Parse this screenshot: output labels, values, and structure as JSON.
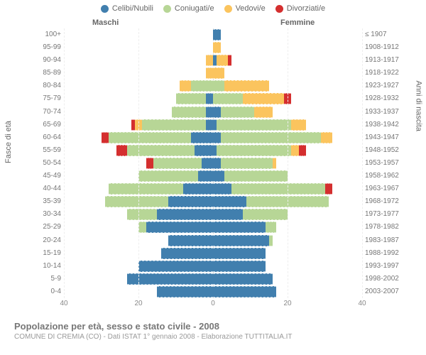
{
  "legend": [
    {
      "label": "Celibi/Nubili",
      "color": "#417fae"
    },
    {
      "label": "Coniugati/e",
      "color": "#b7d696"
    },
    {
      "label": "Vedovi/e",
      "color": "#fbc45e"
    },
    {
      "label": "Divorziati/e",
      "color": "#d42f2f"
    }
  ],
  "gender": {
    "male": "Maschi",
    "female": "Femmine"
  },
  "axis": {
    "left_title": "Fasce di età",
    "right_title": "Anni di nascita",
    "xmax": 40,
    "xticks": [
      40,
      20,
      0,
      20,
      40
    ]
  },
  "footer": {
    "title": "Popolazione per età, sesso e stato civile - 2008",
    "sub": "COMUNE DI CREMIA (CO) - Dati ISTAT 1° gennaio 2008 - Elaborazione TUTTITALIA.IT"
  },
  "rows": [
    {
      "age": "100+",
      "year": "≤ 1907",
      "m": [
        0,
        0,
        0,
        0
      ],
      "f": [
        2,
        0,
        0,
        0
      ]
    },
    {
      "age": "95-99",
      "year": "1908-1912",
      "m": [
        0,
        0,
        0,
        0
      ],
      "f": [
        0,
        0,
        2,
        0
      ]
    },
    {
      "age": "90-94",
      "year": "1913-1917",
      "m": [
        0,
        0,
        2,
        0
      ],
      "f": [
        1,
        0,
        3,
        1
      ]
    },
    {
      "age": "85-89",
      "year": "1918-1922",
      "m": [
        0,
        0,
        2,
        0
      ],
      "f": [
        0,
        0,
        3,
        0
      ]
    },
    {
      "age": "80-84",
      "year": "1923-1927",
      "m": [
        0,
        6,
        3,
        0
      ],
      "f": [
        0,
        3,
        12,
        0
      ]
    },
    {
      "age": "75-79",
      "year": "1928-1932",
      "m": [
        2,
        8,
        0,
        0
      ],
      "f": [
        0,
        8,
        11,
        2
      ]
    },
    {
      "age": "70-74",
      "year": "1933-1937",
      "m": [
        2,
        9,
        0,
        0
      ],
      "f": [
        2,
        9,
        5,
        0
      ]
    },
    {
      "age": "65-69",
      "year": "1938-1942",
      "m": [
        2,
        17,
        2,
        1
      ],
      "f": [
        1,
        20,
        4,
        0
      ]
    },
    {
      "age": "60-64",
      "year": "1943-1947",
      "m": [
        6,
        22,
        0,
        2
      ],
      "f": [
        2,
        27,
        3,
        0
      ]
    },
    {
      "age": "55-59",
      "year": "1948-1952",
      "m": [
        5,
        18,
        0,
        3
      ],
      "f": [
        1,
        20,
        2,
        2
      ]
    },
    {
      "age": "50-54",
      "year": "1953-1957",
      "m": [
        3,
        13,
        0,
        2
      ],
      "f": [
        2,
        14,
        1,
        0
      ]
    },
    {
      "age": "45-49",
      "year": "1958-1962",
      "m": [
        4,
        16,
        0,
        0
      ],
      "f": [
        3,
        17,
        0,
        0
      ]
    },
    {
      "age": "40-44",
      "year": "1963-1967",
      "m": [
        8,
        20,
        0,
        0
      ],
      "f": [
        5,
        25,
        0,
        2
      ]
    },
    {
      "age": "35-39",
      "year": "1968-1972",
      "m": [
        12,
        17,
        0,
        0
      ],
      "f": [
        9,
        22,
        0,
        0
      ]
    },
    {
      "age": "30-34",
      "year": "1973-1977",
      "m": [
        15,
        8,
        0,
        0
      ],
      "f": [
        8,
        12,
        0,
        0
      ]
    },
    {
      "age": "25-29",
      "year": "1978-1982",
      "m": [
        18,
        2,
        0,
        0
      ],
      "f": [
        14,
        3,
        0,
        0
      ]
    },
    {
      "age": "20-24",
      "year": "1983-1987",
      "m": [
        12,
        0,
        0,
        0
      ],
      "f": [
        15,
        1,
        0,
        0
      ]
    },
    {
      "age": "15-19",
      "year": "1988-1992",
      "m": [
        14,
        0,
        0,
        0
      ],
      "f": [
        14,
        0,
        0,
        0
      ]
    },
    {
      "age": "10-14",
      "year": "1993-1997",
      "m": [
        20,
        0,
        0,
        0
      ],
      "f": [
        14,
        0,
        0,
        0
      ]
    },
    {
      "age": "5-9",
      "year": "1998-2002",
      "m": [
        23,
        0,
        0,
        0
      ],
      "f": [
        16,
        0,
        0,
        0
      ]
    },
    {
      "age": "0-4",
      "year": "2003-2007",
      "m": [
        15,
        0,
        0,
        0
      ],
      "f": [
        17,
        0,
        0,
        0
      ]
    }
  ]
}
